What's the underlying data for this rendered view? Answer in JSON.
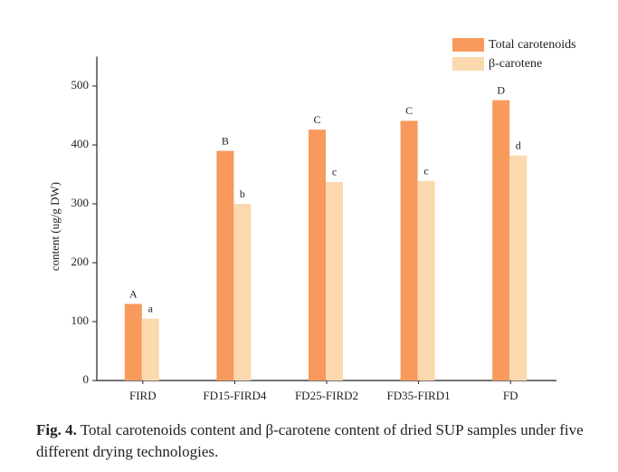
{
  "chart_data": {
    "type": "bar",
    "y_label": "content (ug/g DW)",
    "categories": [
      "FIRD",
      "FD15-FIRD4",
      "FD25-FIRD2",
      "FD35-FIRD1",
      "FD"
    ],
    "series": [
      {
        "name": "Total carotenoids",
        "color": "#f79a5b",
        "values": [
          130,
          390,
          426,
          441,
          476
        ],
        "letters": [
          "A",
          "B",
          "C",
          "C",
          "D"
        ]
      },
      {
        "name": "β-carotene",
        "color": "#fcd8ae",
        "values": [
          105,
          300,
          337,
          339,
          382
        ],
        "letters": [
          "a",
          "b",
          "c",
          "c",
          "d"
        ]
      }
    ],
    "ylim": [
      0,
      550
    ],
    "yticks": [
      0,
      100,
      200,
      300,
      400,
      500
    ],
    "legend": "top-right"
  },
  "caption": {
    "label": "Fig. 4.",
    "text": "Total carotenoids content and β-carotene content of dried SUP samples under five different drying technologies."
  }
}
